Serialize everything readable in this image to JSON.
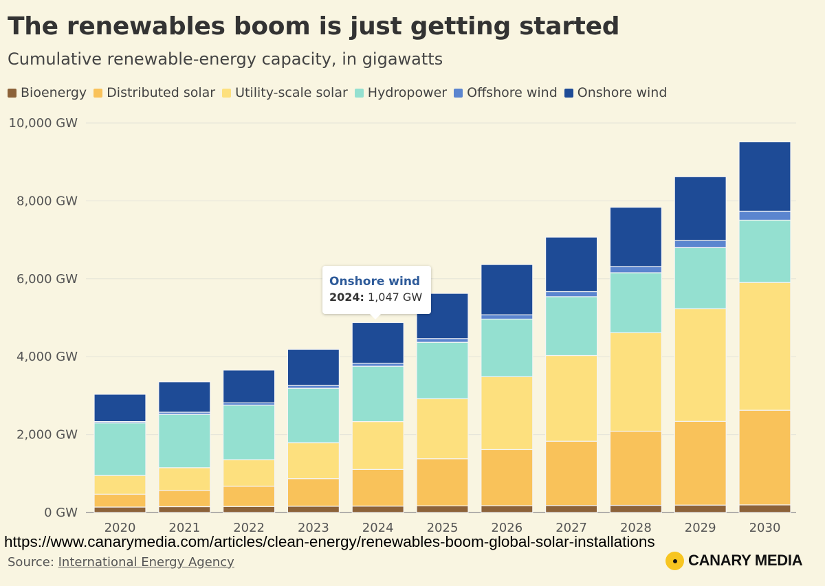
{
  "header": {
    "title": "The renewables boom is just getting started",
    "subtitle": "Cumulative renewable-energy capacity, in gigawatts"
  },
  "legend": {
    "items": [
      {
        "label": "Bioenergy",
        "color": "#8c6239"
      },
      {
        "label": "Distributed solar",
        "color": "#f9c25a"
      },
      {
        "label": "Utility-scale solar",
        "color": "#fde07e"
      },
      {
        "label": "Hydropower",
        "color": "#94e0d0"
      },
      {
        "label": "Offshore wind",
        "color": "#5b85cf"
      },
      {
        "label": "Onshore wind",
        "color": "#1e4b96"
      }
    ]
  },
  "tooltip": {
    "title": "Onshore wind",
    "year_label": "2024:",
    "value_label": "1,047 GW"
  },
  "footer": {
    "url": "https://www.canarymedia.com/articles/clean-energy/renewables-boom-global-solar-installations",
    "source_prefix": "Source:",
    "source_name": "International Energy Agency",
    "brand": "CANARY MEDIA"
  },
  "chart_data": {
    "type": "bar",
    "stacked": true,
    "categories": [
      "2020",
      "2021",
      "2022",
      "2023",
      "2024",
      "2025",
      "2026",
      "2027",
      "2028",
      "2029",
      "2030"
    ],
    "ylim": [
      0,
      10000
    ],
    "yticks": [
      0,
      2000,
      4000,
      6000,
      8000,
      10000
    ],
    "ytick_labels": [
      "0 GW",
      "2,000 GW",
      "4,000 GW",
      "6,000 GW",
      "8,000 GW",
      "10,000 GW"
    ],
    "grid": true,
    "legend_position": "top-left",
    "highlighted": {
      "series": "Onshore wind",
      "category": "2024"
    },
    "series": [
      {
        "name": "Bioenergy",
        "color": "#8c6239",
        "values": [
          140,
          150,
          155,
          160,
          165,
          170,
          175,
          180,
          185,
          190,
          195
        ]
      },
      {
        "name": "Distributed solar",
        "color": "#f9c25a",
        "values": [
          330,
          420,
          520,
          710,
          940,
          1210,
          1440,
          1650,
          1900,
          2150,
          2430
        ]
      },
      {
        "name": "Utility-scale solar",
        "color": "#fde07e",
        "values": [
          480,
          580,
          680,
          920,
          1230,
          1540,
          1870,
          2200,
          2530,
          2890,
          3280
        ]
      },
      {
        "name": "Hydropower",
        "color": "#94e0d0",
        "values": [
          1350,
          1370,
          1400,
          1400,
          1420,
          1450,
          1480,
          1510,
          1540,
          1570,
          1600
        ]
      },
      {
        "name": "Offshore wind",
        "color": "#5b85cf",
        "values": [
          35,
          55,
          60,
          70,
          75,
          95,
          110,
          130,
          160,
          180,
          230
        ]
      },
      {
        "name": "Onshore wind",
        "color": "#1e4b96",
        "values": [
          700,
          780,
          840,
          930,
          1047,
          1160,
          1290,
          1400,
          1520,
          1640,
          1780
        ]
      }
    ]
  }
}
